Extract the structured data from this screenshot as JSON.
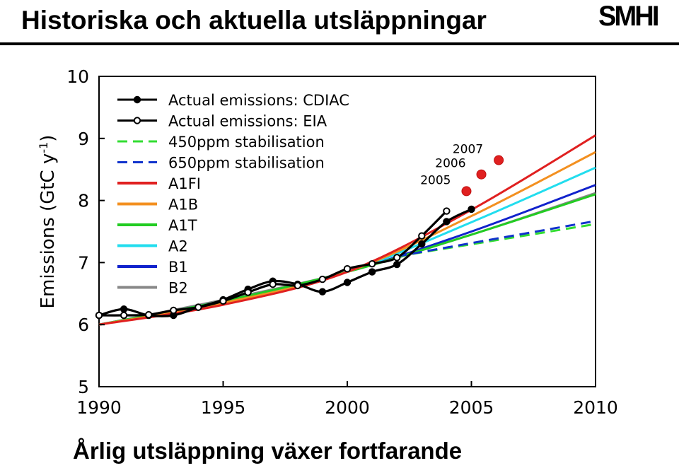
{
  "header": {
    "title": "Historiska och aktuella utsläppningar",
    "logo_text": "SMHI"
  },
  "footer": {
    "subtitle": "Årlig utsläppning växer fortfarande"
  },
  "chart_data": {
    "type": "line",
    "title": "",
    "xlabel": "",
    "ylabel": "Emissions (GtC y",
    "ylabel_sup": "-1",
    "ylabel_close": ")",
    "xlim": [
      1990,
      2010
    ],
    "ylim": [
      5,
      10
    ],
    "xticks": [
      1990,
      1995,
      2000,
      2005,
      2010
    ],
    "yticks": [
      5,
      6,
      7,
      8,
      9,
      10
    ],
    "grid": false,
    "legend_position": "top-left",
    "series": [
      {
        "name": "Actual emissions: CDIAC",
        "style": "line-filled-markers",
        "color": "#000000",
        "x": [
          1990,
          1991,
          1992,
          1993,
          1994,
          1995,
          1996,
          1997,
          1998,
          1999,
          2000,
          2001,
          2002,
          2003,
          2004,
          2005
        ],
        "y": [
          6.15,
          6.25,
          6.15,
          6.15,
          6.28,
          6.4,
          6.57,
          6.7,
          6.65,
          6.53,
          6.68,
          6.85,
          6.97,
          7.3,
          7.66,
          7.86
        ]
      },
      {
        "name": "Actual emissions: EIA",
        "style": "line-open-markers",
        "color": "#000000",
        "x": [
          1990,
          1991,
          1992,
          1993,
          1994,
          1995,
          1996,
          1997,
          1998,
          1999,
          2000,
          2001,
          2002,
          2003,
          2004
        ],
        "y": [
          6.15,
          6.15,
          6.16,
          6.23,
          6.28,
          6.38,
          6.52,
          6.65,
          6.63,
          6.73,
          6.9,
          6.98,
          7.08,
          7.43,
          7.83
        ]
      },
      {
        "name": "450ppm stabilisation",
        "style": "dashed",
        "color": "#33dd33",
        "x": [
          2002,
          2010
        ],
        "y": [
          7.1,
          7.62
        ]
      },
      {
        "name": "650ppm stabilisation",
        "style": "dashed",
        "color": "#1133cc",
        "x": [
          2002,
          2010
        ],
        "y": [
          7.1,
          7.67
        ]
      },
      {
        "name": "A1FI",
        "style": "solid",
        "color": "#e02020",
        "x": [
          1990,
          1995,
          2000,
          2005,
          2010
        ],
        "y": [
          6.0,
          6.32,
          6.85,
          7.85,
          9.05
        ]
      },
      {
        "name": "A1B",
        "style": "solid",
        "color": "#f39020",
        "x": [
          1990,
          1995,
          2000,
          2005,
          2010
        ],
        "y": [
          6.0,
          6.35,
          6.85,
          7.75,
          8.78
        ]
      },
      {
        "name": "A1T",
        "style": "solid",
        "color": "#22cc22",
        "x": [
          1990,
          1995,
          2000,
          2005,
          2010
        ],
        "y": [
          6.0,
          6.38,
          6.85,
          7.45,
          8.1
        ]
      },
      {
        "name": "A2",
        "style": "solid",
        "color": "#22ddee",
        "x": [
          1990,
          1995,
          2000,
          2005,
          2010
        ],
        "y": [
          6.0,
          6.38,
          6.85,
          7.65,
          8.53
        ]
      },
      {
        "name": "B1",
        "style": "solid",
        "color": "#1122cc",
        "x": [
          1990,
          1995,
          2000,
          2005,
          2010
        ],
        "y": [
          6.0,
          6.38,
          6.85,
          7.5,
          8.25
        ]
      },
      {
        "name": "B2",
        "style": "solid",
        "color": "#888888",
        "x": [
          1990,
          1995,
          2000,
          2005,
          2010
        ],
        "y": [
          6.0,
          6.4,
          6.85,
          7.45,
          8.12
        ]
      }
    ],
    "highlight_points": {
      "color": "#e02020",
      "points": [
        {
          "label": "2005",
          "x": 2004.8,
          "y": 8.15
        },
        {
          "label": "2006",
          "x": 2005.4,
          "y": 8.42
        },
        {
          "label": "2007",
          "x": 2006.1,
          "y": 8.65
        }
      ]
    }
  }
}
